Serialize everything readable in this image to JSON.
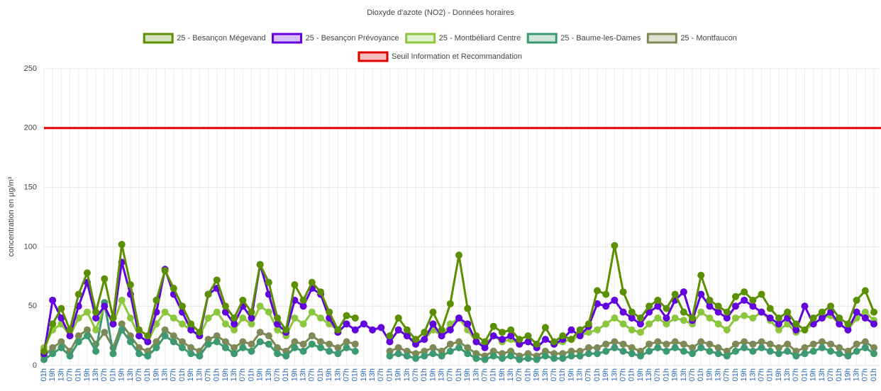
{
  "chart_data": {
    "type": "line",
    "title": "Dioxyde d'azote (NO2) - Données horaires",
    "y_label": "concentration en µg/m³",
    "ylim": [
      0,
      250
    ],
    "yticks": [
      0,
      50,
      100,
      150,
      200,
      250
    ],
    "grid": true,
    "categories": [
      "01h",
      "19h",
      "13h",
      "07h",
      "01h",
      "19h",
      "13h",
      "07h",
      "01h",
      "19h",
      "13h",
      "07h",
      "01h",
      "19h",
      "13h",
      "07h",
      "01h",
      "19h",
      "13h",
      "07h",
      "01h",
      "19h",
      "13h",
      "07h",
      "01h",
      "19h",
      "13h",
      "07h",
      "01h",
      "19h",
      "13h",
      "07h",
      "01h",
      "19h",
      "13h",
      "07h",
      "01h",
      "19h",
      "13h",
      "07h",
      "01h",
      "19h",
      "13h",
      "07h",
      "01h",
      "19h",
      "13h",
      "07h",
      "01h",
      "19h",
      "13h",
      "07h",
      "01h",
      "19h",
      "13h",
      "07h",
      "01h",
      "19h",
      "13h",
      "07h",
      "01h",
      "19h",
      "13h",
      "07h",
      "01h",
      "19h",
      "13h",
      "07h",
      "01h",
      "19h",
      "13h",
      "07h",
      "01h",
      "19h",
      "13h",
      "07h",
      "01h",
      "19h",
      "13h",
      "07h",
      "01h",
      "19h",
      "13h",
      "07h",
      "01h",
      "19h",
      "13h",
      "07h",
      "01h",
      "19h",
      "13h",
      "07h",
      "01h",
      "19h",
      "13h",
      "07h",
      "01h"
    ],
    "series": [
      {
        "name": "25 - Besançon Mégevand",
        "color": "#5a8f00",
        "values": [
          12,
          35,
          48,
          30,
          60,
          78,
          45,
          73,
          40,
          102,
          68,
          30,
          25,
          55,
          80,
          65,
          50,
          35,
          28,
          60,
          72,
          50,
          40,
          55,
          45,
          85,
          70,
          40,
          30,
          68,
          55,
          70,
          62,
          45,
          30,
          42,
          40,
          null,
          null,
          null,
          25,
          40,
          30,
          22,
          28,
          45,
          30,
          52,
          93,
          48,
          25,
          20,
          33,
          28,
          30,
          22,
          25,
          18,
          32,
          20,
          25,
          22,
          30,
          35,
          63,
          60,
          101,
          62,
          45,
          40,
          50,
          55,
          48,
          60,
          45,
          40,
          76,
          55,
          50,
          45,
          58,
          62,
          55,
          60,
          48,
          40,
          45,
          35,
          30,
          40,
          45,
          50,
          40,
          35,
          55,
          63,
          45
        ]
      },
      {
        "name": "25 - Besançon Prévoyance",
        "color": "#6200e0",
        "values": [
          10,
          55,
          40,
          25,
          50,
          70,
          40,
          50,
          35,
          87,
          60,
          25,
          20,
          45,
          81,
          60,
          45,
          30,
          25,
          60,
          65,
          45,
          35,
          50,
          40,
          85,
          60,
          35,
          28,
          55,
          50,
          65,
          60,
          40,
          28,
          35,
          30,
          35,
          30,
          32,
          20,
          30,
          25,
          18,
          22,
          35,
          25,
          30,
          40,
          35,
          20,
          15,
          25,
          22,
          25,
          18,
          20,
          15,
          22,
          18,
          22,
          30,
          25,
          33,
          52,
          50,
          55,
          45,
          40,
          35,
          45,
          50,
          40,
          55,
          62,
          38,
          60,
          50,
          45,
          40,
          50,
          55,
          50,
          45,
          40,
          35,
          40,
          30,
          50,
          35,
          40,
          45,
          35,
          30,
          45,
          40,
          35
        ]
      },
      {
        "name": "25 - Montbéliard Centre",
        "color": "#8cc63f",
        "values": [
          15,
          30,
          35,
          25,
          40,
          45,
          30,
          50,
          35,
          55,
          40,
          25,
          20,
          35,
          45,
          40,
          35,
          30,
          25,
          40,
          45,
          35,
          30,
          40,
          35,
          50,
          45,
          30,
          25,
          40,
          35,
          45,
          40,
          35,
          30,
          42,
          40,
          null,
          null,
          null,
          20,
          30,
          25,
          20,
          22,
          30,
          25,
          35,
          40,
          30,
          20,
          18,
          25,
          20,
          22,
          18,
          20,
          15,
          22,
          18,
          20,
          22,
          25,
          28,
          30,
          35,
          40,
          35,
          30,
          28,
          35,
          40,
          35,
          40,
          38,
          35,
          45,
          40,
          35,
          30,
          40,
          42,
          40,
          45,
          38,
          30,
          35,
          28,
          30,
          35,
          40,
          42,
          35,
          30,
          40,
          45,
          38
        ]
      },
      {
        "name": "25 - Baume-les-Dames",
        "color": "#3d9970",
        "values": [
          5,
          10,
          15,
          8,
          20,
          25,
          12,
          53,
          10,
          30,
          20,
          10,
          8,
          15,
          25,
          20,
          15,
          10,
          8,
          18,
          20,
          15,
          10,
          15,
          12,
          20,
          18,
          10,
          8,
          15,
          12,
          18,
          15,
          12,
          10,
          15,
          12,
          null,
          null,
          null,
          8,
          10,
          8,
          6,
          8,
          10,
          8,
          12,
          15,
          10,
          6,
          5,
          8,
          6,
          8,
          5,
          6,
          5,
          8,
          6,
          6,
          8,
          8,
          10,
          10,
          12,
          15,
          12,
          10,
          8,
          12,
          15,
          12,
          15,
          12,
          10,
          15,
          12,
          10,
          8,
          12,
          15,
          12,
          15,
          12,
          10,
          12,
          8,
          10,
          12,
          15,
          12,
          10,
          8,
          12,
          15,
          10
        ]
      },
      {
        "name": "25 - Montfaucon",
        "color": "#7d8a55",
        "values": [
          8,
          15,
          20,
          12,
          25,
          30,
          18,
          28,
          15,
          35,
          25,
          15,
          12,
          20,
          30,
          25,
          20,
          15,
          12,
          22,
          25,
          20,
          15,
          20,
          18,
          28,
          25,
          15,
          12,
          20,
          18,
          25,
          20,
          18,
          15,
          20,
          18,
          null,
          null,
          null,
          12,
          15,
          12,
          10,
          12,
          15,
          12,
          18,
          20,
          15,
          10,
          8,
          12,
          10,
          12,
          8,
          10,
          8,
          12,
          10,
          10,
          12,
          12,
          15,
          15,
          18,
          20,
          18,
          15,
          12,
          18,
          20,
          18,
          20,
          18,
          15,
          20,
          18,
          15,
          12,
          18,
          20,
          18,
          20,
          18,
          15,
          18,
          12,
          15,
          18,
          20,
          18,
          15,
          12,
          18,
          20,
          15
        ]
      }
    ],
    "threshold": {
      "name": "Seuil Information et Recommandation",
      "value": 200,
      "color": "#e00000"
    }
  }
}
